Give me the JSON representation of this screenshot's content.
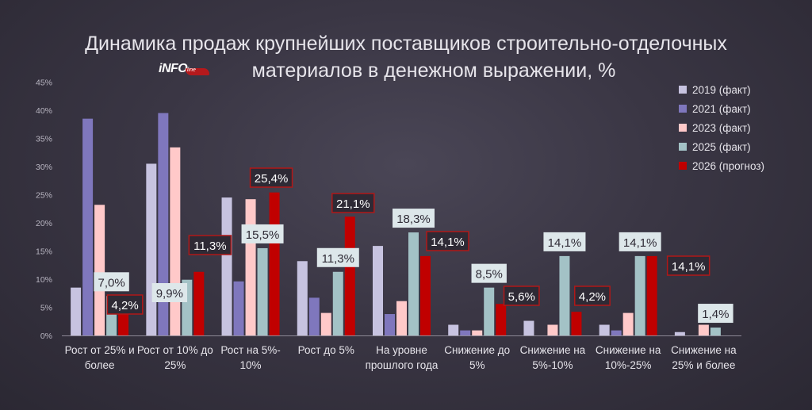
{
  "title_line1": "Динамика продаж крупнейших поставщиков строительно-отделочных",
  "title_line2": "материалов в денежном выражении, %",
  "logo": {
    "text": "iNFO",
    "sub": "line"
  },
  "colors": {
    "2019": "#c7c3e0",
    "2021": "#7f77bd",
    "2023": "#ffc9c9",
    "2025": "#a3c2c6",
    "2026": "#c00000",
    "box_border": "#b01818",
    "box_fill_light": "#dde7ea",
    "box_fill_dark": "#2e2a35"
  },
  "chart_data": {
    "type": "bar",
    "title": "Динамика продаж крупнейших поставщиков строительно-отделочных материалов в денежном выражении, %",
    "categories": [
      [
        "Рост от 25% и",
        "более"
      ],
      [
        "Рост от 10% до",
        "25%"
      ],
      [
        "Рост на 5%-",
        "10%"
      ],
      [
        "Рост до 5%"
      ],
      [
        "На уровне",
        "прошлого года"
      ],
      [
        "Снижение до",
        "5%"
      ],
      [
        "Снижение на",
        "5%-10%"
      ],
      [
        "Снижение на",
        "10%-25%"
      ],
      [
        "Снижение на",
        "25% и более"
      ]
    ],
    "yticks": [
      "0%",
      "5%",
      "10%",
      "15%",
      "20%",
      "25%",
      "30%",
      "35%",
      "40%",
      "45%"
    ],
    "ylim": [
      0,
      45
    ],
    "legend_position": "right",
    "series": [
      {
        "name": "2019 (факт)",
        "values": [
          8.5,
          30.5,
          24.5,
          13.2,
          15.9,
          1.9,
          2.6,
          1.9,
          0.6
        ]
      },
      {
        "name": "2021 (факт)",
        "values": [
          38.5,
          39.5,
          9.6,
          6.7,
          3.8,
          0.9,
          0,
          0.9,
          0
        ]
      },
      {
        "name": "2023 (факт)",
        "values": [
          23.2,
          33.4,
          24.2,
          4.0,
          6.1,
          0.9,
          1.9,
          4.0,
          1.9
        ]
      },
      {
        "name": "2025 (факт)",
        "values": [
          7.0,
          9.9,
          15.5,
          11.3,
          18.3,
          8.5,
          14.1,
          14.1,
          1.4
        ]
      },
      {
        "name": "2026 (прогноз)",
        "values": [
          4.2,
          11.3,
          25.4,
          21.1,
          14.1,
          5.6,
          4.2,
          14.1,
          0
        ]
      }
    ],
    "labels_2025": [
      "7,0%",
      "9,9%",
      "15,5%",
      "11,3%",
      "18,3%",
      "8,5%",
      "14,1%",
      "14,1%",
      "1,4%"
    ],
    "labels_2026": [
      "4,2%",
      "11,3%",
      "25,4%",
      "21,1%",
      "14,1%",
      "5,6%",
      "4,2%",
      "14,1%",
      ""
    ]
  }
}
